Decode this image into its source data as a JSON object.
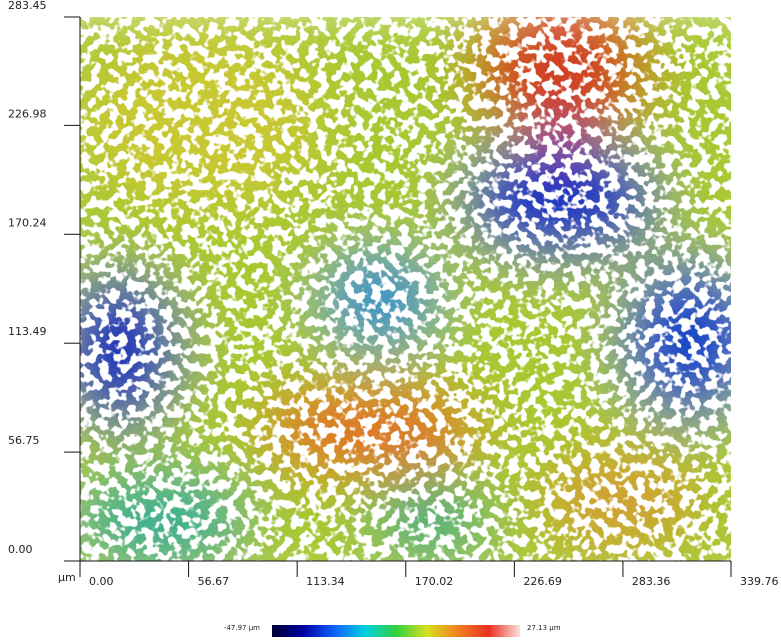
{
  "chart_data": {
    "type": "image",
    "x_unit": "µm",
    "xlim": [
      0,
      339.76
    ],
    "xticks": [
      {
        "value": 0,
        "label": "0.00"
      },
      {
        "value": 56.67,
        "label": "56.67"
      },
      {
        "value": 113.34,
        "label": "113.34"
      },
      {
        "value": 170.02,
        "label": "170.02"
      },
      {
        "value": 226.69,
        "label": "226.69"
      },
      {
        "value": 283.36,
        "label": "283.36"
      },
      {
        "value": 339.76,
        "label": "339.76"
      }
    ],
    "ylim": [
      0,
      283.45
    ],
    "yticks": [
      {
        "value": 0,
        "label": "0.00"
      },
      {
        "value": 56.75,
        "label": "56.75"
      },
      {
        "value": 113.49,
        "label": "113.49"
      },
      {
        "value": 170.24,
        "label": "170.24"
      },
      {
        "value": 226.98,
        "label": "226.98"
      },
      {
        "value": 283.45,
        "label": "283.45"
      }
    ],
    "colorbar": {
      "limits": [
        {
          "value": -47.97,
          "label": "-47.97 µm"
        },
        {
          "value": 27.13,
          "label": "27.13 µm"
        }
      ],
      "colors": [
        "#000033",
        "#0000a0",
        "#1060ff",
        "#00d0e0",
        "#30d040",
        "#d8e020",
        "#f08020",
        "#e83020",
        "#ffe0e0"
      ]
    }
  }
}
